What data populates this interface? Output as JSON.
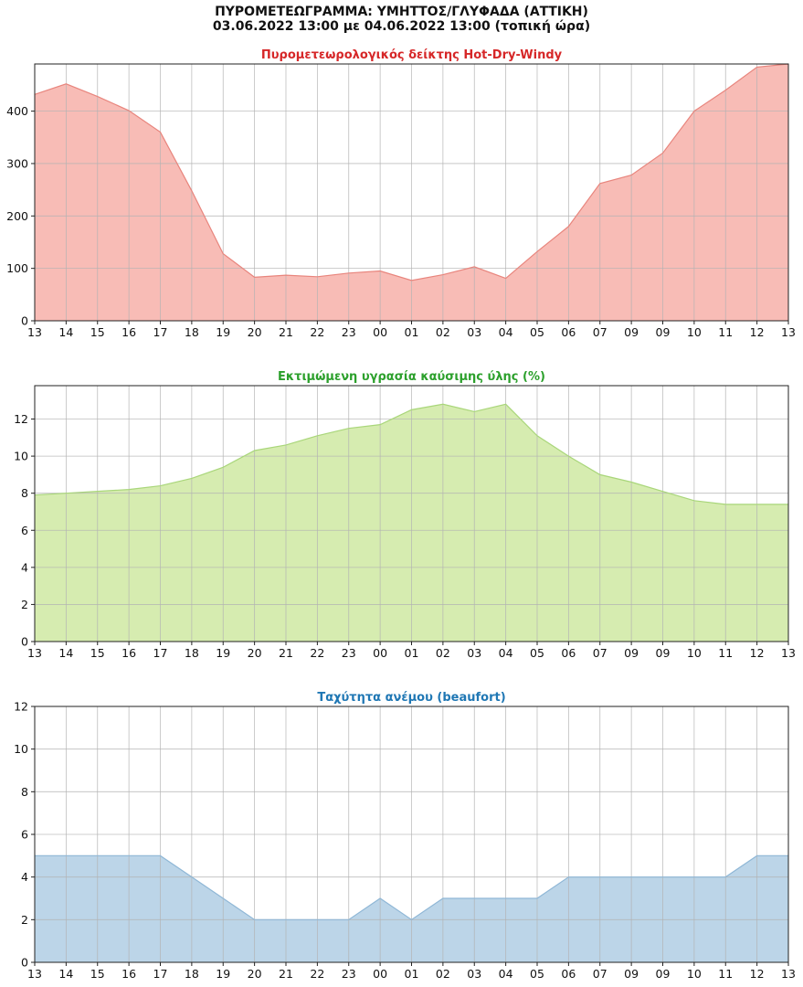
{
  "header": {
    "title": "ΠΥΡΟΜΕΤΕΩΓΡΑΜΜΑ: ΥΜΗΤΤΟΣ/ΓΛΥΦΑΔΑ (ΑΤΤΙΚΗ)",
    "subtitle": "03.06.2022 13:00 με 04.06.2022 13:00 (τοπική ώρα)"
  },
  "chart_data": [
    {
      "type": "area",
      "title": "Πυρομετεωρολογικός δείκτης Hot-Dry-Windy",
      "title_color": "#d62728",
      "fill_color": "#f8bcb6",
      "line_color": "#e8857d",
      "categories": [
        "13",
        "14",
        "15",
        "16",
        "17",
        "18",
        "19",
        "20",
        "21",
        "22",
        "23",
        "00",
        "01",
        "02",
        "03",
        "04",
        "05",
        "06",
        "07",
        "09",
        "09",
        "10",
        "11",
        "12",
        "13"
      ],
      "values": [
        432,
        452,
        428,
        401,
        360,
        248,
        128,
        83,
        87,
        84,
        91,
        95,
        77,
        88,
        103,
        81,
        132,
        180,
        262,
        278,
        320,
        400,
        440,
        484,
        490
      ],
      "yticks": [
        0,
        100,
        200,
        300,
        400
      ],
      "ylim": [
        0,
        490
      ],
      "grid": true
    },
    {
      "type": "area",
      "title": "Εκτιμώμενη υγρασία καύσιμης ύλης (%)",
      "title_color": "#2ca02c",
      "fill_color": "#d6ecb0",
      "line_color": "#a9d67a",
      "categories": [
        "13",
        "14",
        "15",
        "16",
        "17",
        "18",
        "19",
        "20",
        "21",
        "22",
        "23",
        "00",
        "01",
        "02",
        "03",
        "04",
        "05",
        "06",
        "07",
        "09",
        "09",
        "10",
        "11",
        "12",
        "13"
      ],
      "values": [
        7.9,
        8.0,
        8.1,
        8.2,
        8.4,
        8.8,
        9.4,
        10.3,
        10.6,
        11.1,
        11.5,
        11.7,
        12.5,
        12.8,
        12.4,
        12.8,
        11.1,
        10.0,
        9.0,
        8.6,
        8.1,
        7.6,
        7.4,
        7.4,
        7.4
      ],
      "yticks": [
        0,
        2,
        4,
        6,
        8,
        10,
        12
      ],
      "ylim": [
        0,
        13.8
      ],
      "grid": true
    },
    {
      "type": "area",
      "title": "Ταχύτητα ανέμου (beaufort)",
      "title_color": "#1f77b4",
      "fill_color": "#bcd5e8",
      "line_color": "#8fb7d6",
      "categories": [
        "13",
        "14",
        "15",
        "16",
        "17",
        "18",
        "19",
        "20",
        "21",
        "22",
        "23",
        "00",
        "01",
        "02",
        "03",
        "04",
        "05",
        "06",
        "07",
        "09",
        "09",
        "10",
        "11",
        "12",
        "13"
      ],
      "values": [
        5,
        5,
        5,
        5,
        5,
        4,
        3,
        2,
        2,
        2,
        2,
        3,
        2,
        3,
        3,
        3,
        3,
        4,
        4,
        4,
        4,
        4,
        4,
        5,
        5
      ],
      "yticks": [
        0,
        2,
        4,
        6,
        8,
        10,
        12
      ],
      "ylim": [
        0,
        12
      ],
      "grid": true
    }
  ]
}
